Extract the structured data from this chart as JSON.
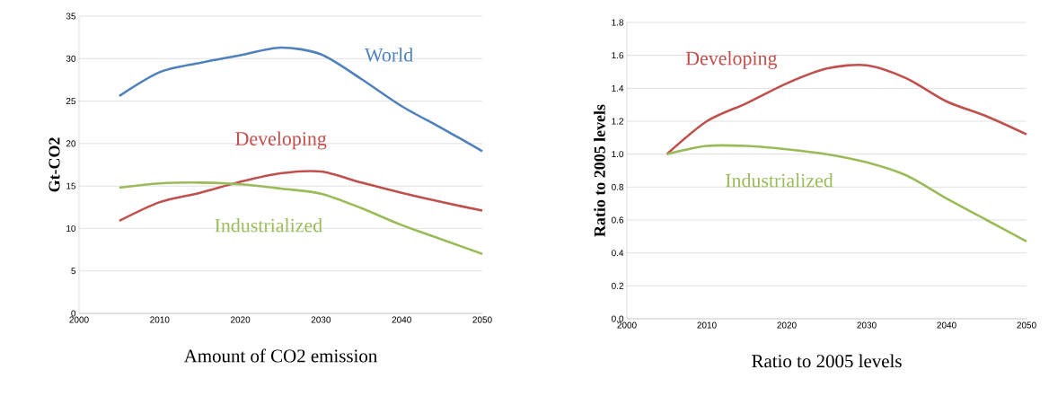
{
  "chart_data": [
    {
      "type": "line",
      "title": "Amount of CO2 emission",
      "ylabel": "Gt-CO2",
      "x": [
        2005,
        2010,
        2015,
        2020,
        2025,
        2030,
        2035,
        2040,
        2045,
        2050
      ],
      "series": [
        {
          "name": "World",
          "color": "#4f81bd",
          "values": [
            25.6,
            28.4,
            29.5,
            30.4,
            31.3,
            30.5,
            27.6,
            24.4,
            21.8,
            19.1
          ]
        },
        {
          "name": "Developing",
          "color": "#c0504d",
          "values": [
            10.9,
            13.1,
            14.2,
            15.5,
            16.5,
            16.7,
            15.4,
            14.2,
            13.1,
            12.1
          ]
        },
        {
          "name": "Industrialized",
          "color": "#9bbb59",
          "values": [
            14.8,
            15.3,
            15.4,
            15.2,
            14.7,
            14.1,
            12.4,
            10.4,
            8.7,
            7.0
          ]
        }
      ],
      "xlim": [
        2000,
        2050
      ],
      "xticks": [
        2000,
        2010,
        2020,
        2030,
        2040,
        2050
      ],
      "ylim": [
        0,
        35
      ],
      "yticks": [
        0,
        5,
        10,
        15,
        20,
        25,
        30,
        35
      ],
      "grid": "y"
    },
    {
      "type": "line",
      "title": "Ratio to 2005 levels",
      "ylabel": "Ratio to 2005 levels",
      "x": [
        2005,
        2010,
        2015,
        2020,
        2025,
        2030,
        2035,
        2040,
        2045,
        2050
      ],
      "series": [
        {
          "name": "Developing",
          "color": "#c0504d",
          "values": [
            1.0,
            1.2,
            1.31,
            1.43,
            1.52,
            1.54,
            1.46,
            1.32,
            1.23,
            1.12
          ]
        },
        {
          "name": "Industrialized",
          "color": "#9bbb59",
          "values": [
            1.0,
            1.05,
            1.05,
            1.03,
            1.0,
            0.95,
            0.87,
            0.73,
            0.6,
            0.47
          ]
        }
      ],
      "xlim": [
        2000,
        2050
      ],
      "xticks": [
        2000,
        2010,
        2020,
        2030,
        2040,
        2050
      ],
      "ylim": [
        0.0,
        1.8
      ],
      "yticks": [
        {
          "value": 0.0,
          "label": "0.0"
        },
        0.2,
        0.4,
        0.6,
        0.8,
        {
          "value": 1.0,
          "label": "1.0"
        },
        1.2,
        1.4,
        1.6,
        1.8
      ],
      "grid": "y"
    }
  ]
}
